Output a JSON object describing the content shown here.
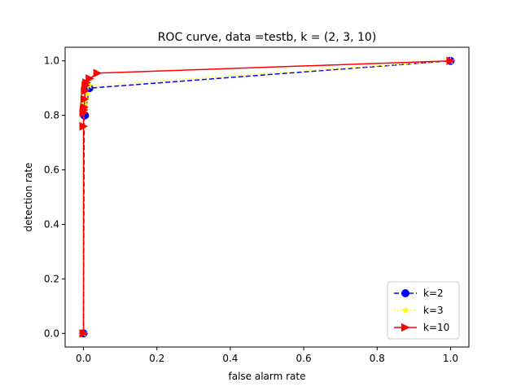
{
  "chart_data": {
    "type": "line",
    "title": "ROC curve, data =testb, k = (2, 3, 10)",
    "xlabel": "false alarm rate",
    "ylabel": "detection rate",
    "xlim": [
      -0.05,
      1.05
    ],
    "ylim": [
      -0.05,
      1.05
    ],
    "xticks": [
      0.0,
      0.2,
      0.4,
      0.6,
      0.8,
      1.0
    ],
    "yticks": [
      0.0,
      0.2,
      0.4,
      0.6,
      0.8,
      1.0
    ],
    "xtick_labels": [
      "0.0",
      "0.2",
      "0.4",
      "0.6",
      "0.8",
      "1.0"
    ],
    "ytick_labels": [
      "0.0",
      "0.2",
      "0.4",
      "0.6",
      "0.8",
      "1.0"
    ],
    "grid": false,
    "legend_position": "lower-right",
    "series": [
      {
        "name": "k=2",
        "color": "#0000ff",
        "line_style": "dashed",
        "marker": "circle",
        "x": [
          0.0,
          0.002,
          0.004,
          0.016,
          1.0
        ],
        "y": [
          0.0,
          0.8,
          0.8,
          0.9,
          1.0
        ]
      },
      {
        "name": "k=3",
        "color": "#ffff00",
        "line_style": "dotted",
        "marker": "star",
        "x": [
          0.0,
          0.0,
          0.002,
          0.004,
          0.006,
          0.01,
          0.016,
          1.0
        ],
        "y": [
          0.0,
          0.76,
          0.82,
          0.84,
          0.86,
          0.88,
          0.91,
          1.0
        ]
      },
      {
        "name": "k=10",
        "color": "#ff0000",
        "line_style": "solid",
        "marker": "triangle-right",
        "x": [
          0.0,
          0.0,
          0.0,
          0.001,
          0.002,
          0.003,
          0.004,
          0.006,
          0.008,
          0.017,
          0.038,
          1.0
        ],
        "y": [
          0.0,
          0.76,
          0.81,
          0.82,
          0.83,
          0.86,
          0.89,
          0.91,
          0.92,
          0.935,
          0.955,
          1.0
        ]
      }
    ]
  }
}
